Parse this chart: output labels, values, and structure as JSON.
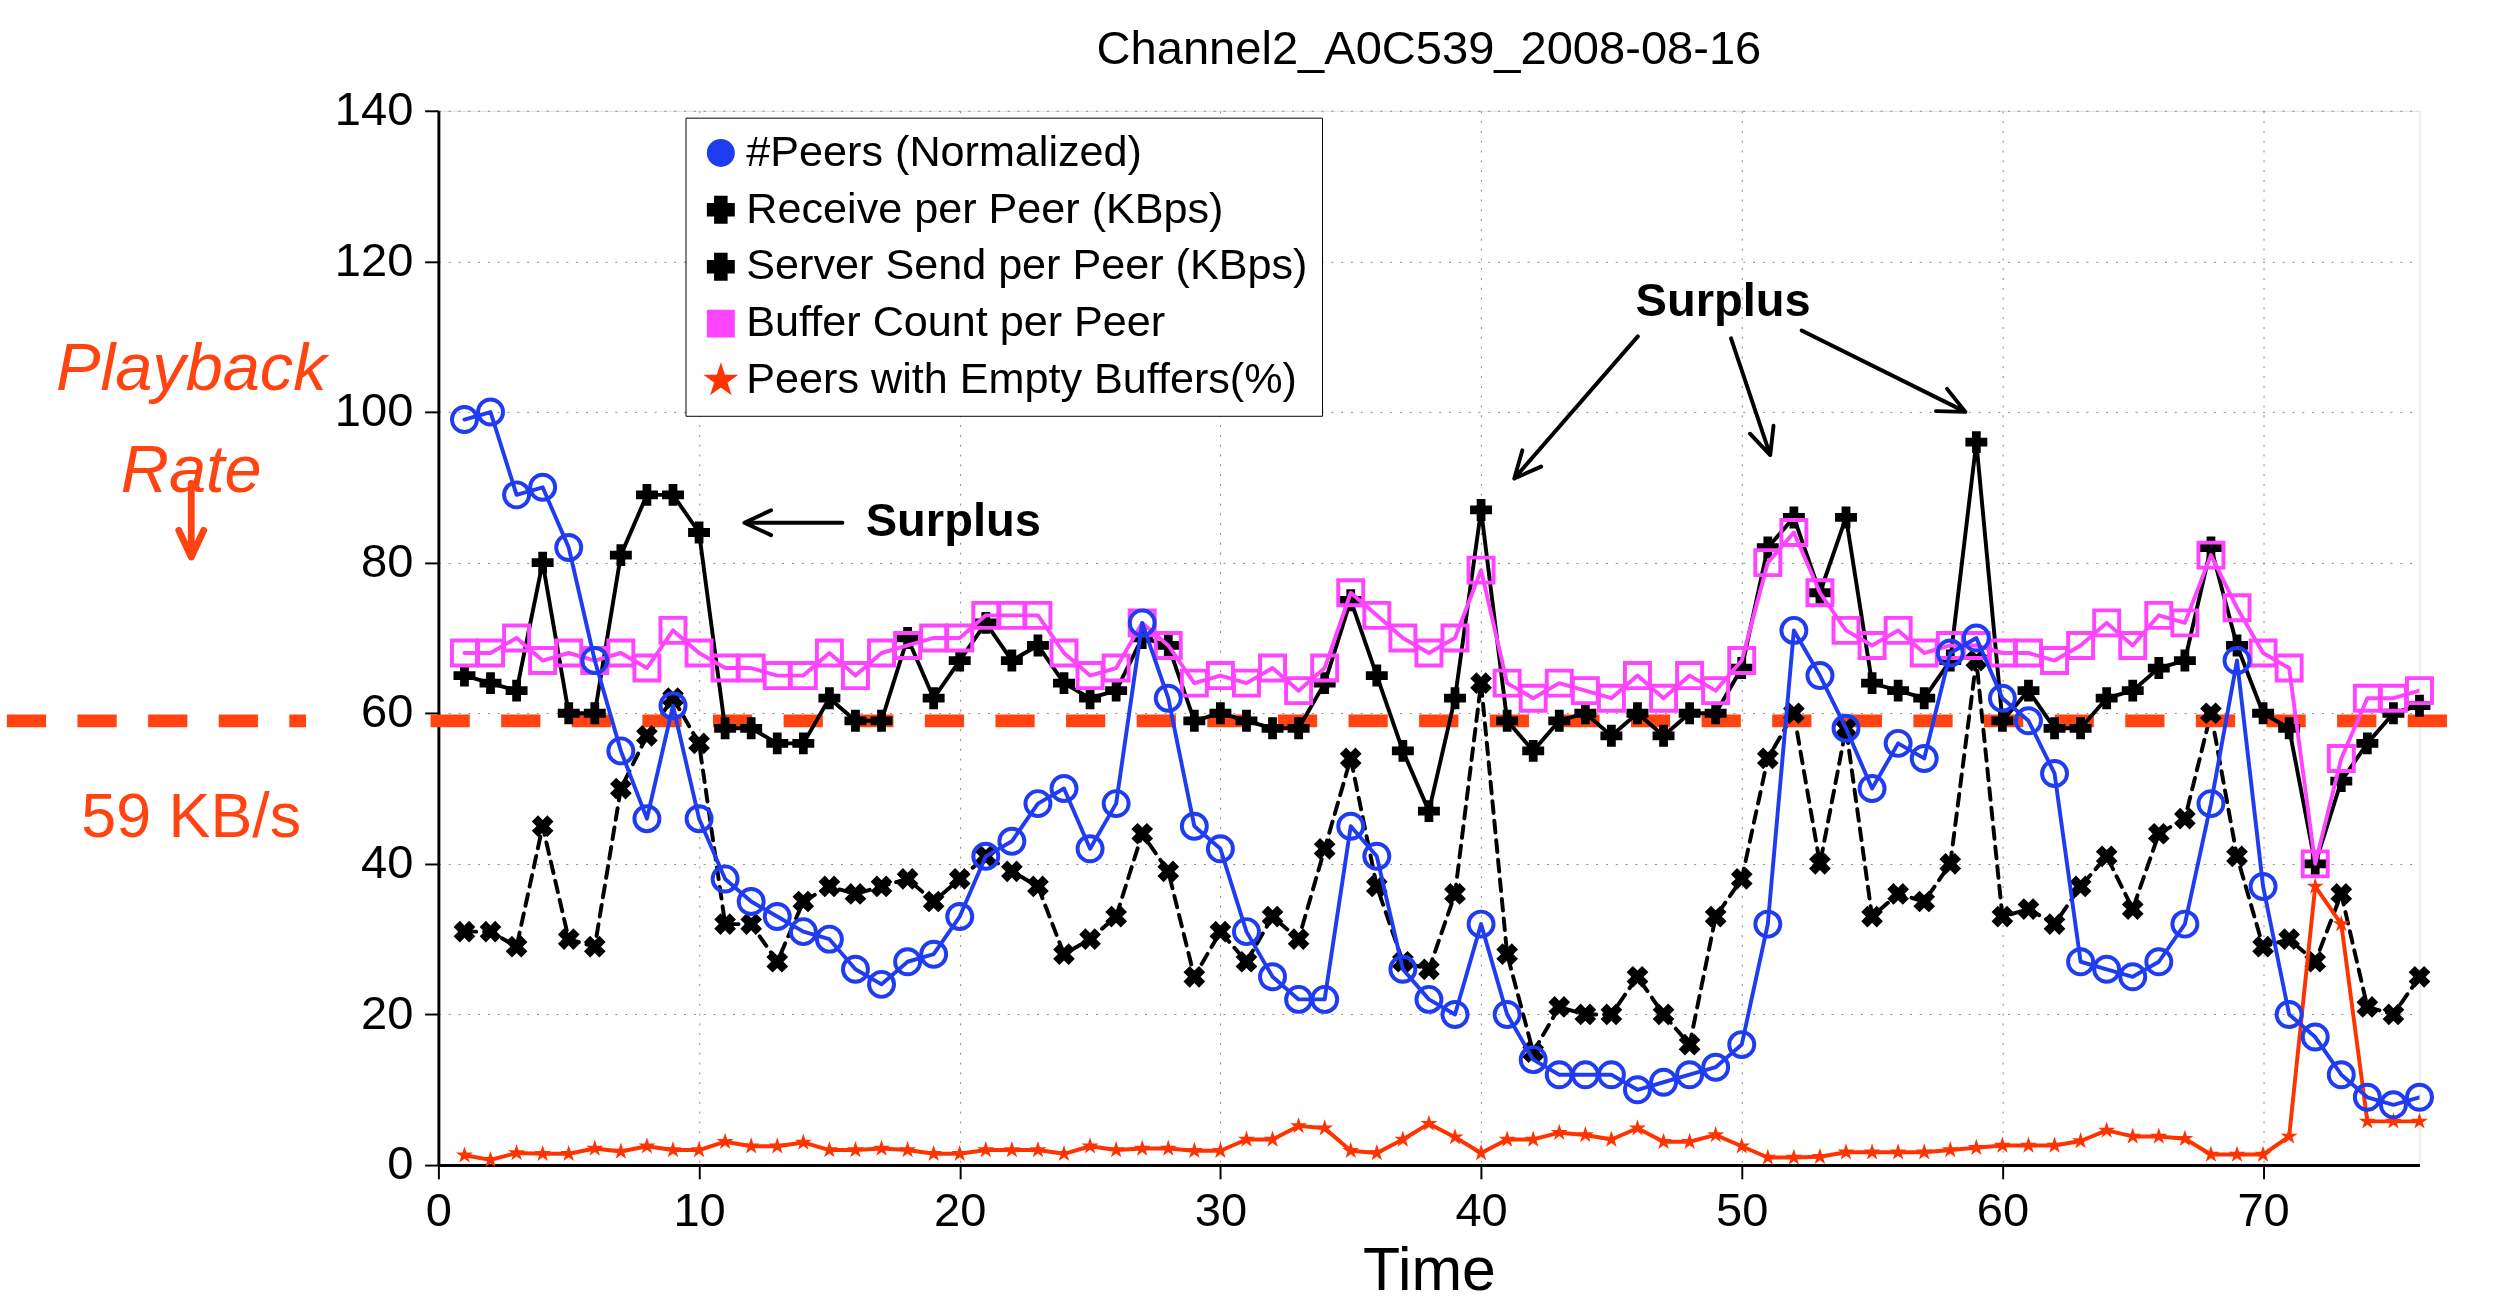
{
  "chart_data": {
    "type": "line",
    "title": "Channel2_A0C539_2008-08-16",
    "xlabel": "Time",
    "x": [
      1,
      2,
      3,
      4,
      5,
      6,
      7,
      8,
      9,
      10,
      11,
      12,
      13,
      14,
      15,
      16,
      17,
      18,
      19,
      20,
      21,
      22,
      23,
      24,
      25,
      26,
      27,
      28,
      29,
      30,
      31,
      32,
      33,
      34,
      35,
      36,
      37,
      38,
      39,
      40,
      41,
      42,
      43,
      44,
      45,
      46,
      47,
      48,
      49,
      50,
      51,
      52,
      53,
      54,
      55,
      56,
      57,
      58,
      59,
      60,
      61,
      62,
      63,
      64,
      65,
      66,
      67,
      68,
      69,
      70,
      71,
      72,
      73,
      74,
      75,
      76
    ],
    "series": [
      {
        "name": "#Peers (Normalized)",
        "color": "#1f3cf0",
        "marker": "circle",
        "line_style": "solid",
        "values": [
          99,
          100,
          89,
          90,
          82,
          67,
          55,
          46,
          61,
          46,
          38,
          35,
          33,
          31,
          30,
          26,
          24,
          27,
          28,
          33,
          41,
          43,
          48,
          50,
          42,
          48,
          72,
          62,
          45,
          42,
          31,
          25,
          22,
          22,
          45,
          41,
          26,
          22,
          20,
          32,
          20,
          14,
          12,
          12,
          12,
          10,
          11,
          12,
          13,
          16,
          32,
          71,
          65,
          58,
          50,
          56,
          54,
          68,
          70,
          62,
          59,
          52,
          27,
          26,
          25,
          27,
          32,
          48,
          67,
          37,
          20,
          17,
          12,
          9,
          8,
          9
        ]
      },
      {
        "name": "Receive per Peer (KBps)",
        "color": "#000000",
        "marker": "cross",
        "line_style": "solid",
        "values": [
          65,
          64,
          63,
          80,
          60,
          60,
          81,
          89,
          89,
          84,
          58,
          58,
          56,
          56,
          62,
          59,
          59,
          70,
          62,
          67,
          72,
          67,
          69,
          64,
          62,
          63,
          70,
          69,
          59,
          60,
          59,
          58,
          58,
          64,
          75,
          65,
          55,
          47,
          62,
          87,
          59,
          55,
          59,
          60,
          57,
          60,
          57,
          60,
          60,
          66,
          82,
          86,
          76,
          86,
          64,
          63,
          62,
          67,
          96,
          59,
          63,
          58,
          58,
          62,
          63,
          66,
          67,
          82,
          69,
          60,
          58,
          40,
          51,
          56,
          60,
          61
        ]
      },
      {
        "name": "Server Send per Peer (KBps)",
        "color": "#000000",
        "marker": "x",
        "line_style": "dashed",
        "values": [
          31,
          31,
          29,
          45,
          30,
          29,
          50,
          57,
          62,
          56,
          32,
          32,
          27,
          35,
          37,
          36,
          37,
          38,
          35,
          38,
          41,
          39,
          37,
          28,
          30,
          33,
          44,
          39,
          25,
          31,
          27,
          33,
          30,
          42,
          54,
          37,
          27,
          26,
          36,
          64,
          28,
          15,
          21,
          20,
          20,
          25,
          20,
          16,
          33,
          38,
          54,
          60,
          40,
          58,
          33,
          36,
          35,
          40,
          67,
          33,
          34,
          32,
          37,
          41,
          34,
          44,
          46,
          60,
          41,
          29,
          30,
          27,
          36,
          21,
          20,
          25
        ]
      },
      {
        "name": "Buffer Count per Peer",
        "color": "#ff44ff",
        "marker": "square",
        "line_style": "solid",
        "values": [
          68,
          68,
          70,
          67,
          68,
          67,
          68,
          66,
          71,
          68,
          66,
          66,
          65,
          65,
          68,
          65,
          68,
          69,
          70,
          70,
          73,
          73,
          73,
          68,
          65,
          66,
          72,
          69,
          64,
          65,
          64,
          66,
          63,
          66,
          76,
          73,
          70,
          68,
          70,
          79,
          64,
          62,
          64,
          63,
          62,
          65,
          62,
          65,
          63,
          67,
          80,
          84,
          76,
          71,
          69,
          71,
          68,
          69,
          69,
          68,
          68,
          67,
          69,
          72,
          69,
          73,
          72,
          81,
          74,
          68,
          66,
          40,
          54,
          62,
          62,
          63
        ]
      },
      {
        "name": "Peers with Empty Buffers(%)",
        "color": "#ff3300",
        "marker": "star",
        "line_style": "solid",
        "values": [
          1.3,
          0.7,
          1.6,
          1.5,
          1.5,
          2.2,
          1.8,
          2.5,
          2,
          2,
          3.1,
          2.5,
          2.5,
          3,
          2,
          2,
          2.2,
          2,
          1.5,
          1.5,
          2,
          2,
          2,
          1.5,
          2.5,
          2,
          2.2,
          2.2,
          1.9,
          1.9,
          3.4,
          3.4,
          5.2,
          4.9,
          1.9,
          1.6,
          3.4,
          5.5,
          3.7,
          1.6,
          3.4,
          3.4,
          4.3,
          4,
          3.4,
          4.9,
          3.1,
          3.1,
          4,
          2.5,
          1,
          1,
          1.1,
          1.7,
          1.7,
          1.7,
          1.7,
          2,
          2.3,
          2.6,
          2.6,
          2.6,
          3.2,
          4.6,
          3.8,
          3.8,
          3.5,
          1.4,
          1.4,
          1.4,
          3.8,
          37,
          32,
          5.8,
          5.8,
          5.8
        ]
      }
    ],
    "xlim": [
      0,
      76
    ],
    "xticks": [
      0,
      10,
      20,
      30,
      40,
      50,
      60,
      70
    ],
    "ylim": [
      0,
      140
    ],
    "yticks": [
      0,
      20,
      40,
      60,
      80,
      100,
      120,
      140
    ],
    "grid": true,
    "legend": "top left",
    "ref_lines": [
      {
        "axis": "y",
        "value": 59,
        "label": "59 KB/s",
        "color": "#ff4411",
        "line_style": "dashed"
      }
    ],
    "annotations": [
      "Playback Rate",
      "Surplus",
      "Surplus"
    ]
  }
}
